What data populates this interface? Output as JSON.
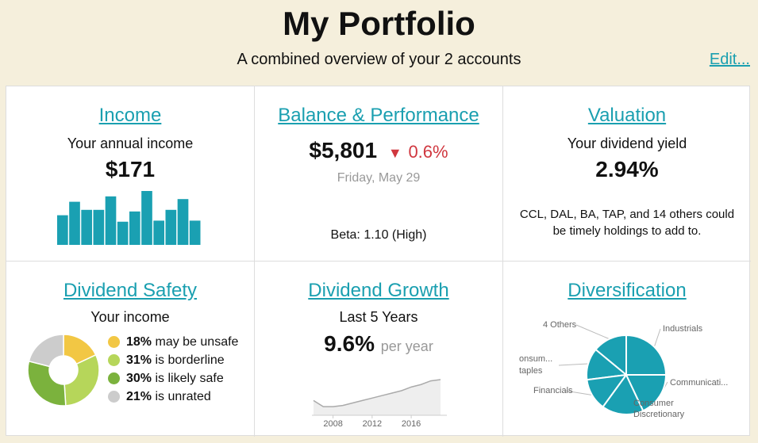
{
  "header": {
    "title": "My Portfolio",
    "subtitle": "A combined overview of your 2 accounts",
    "edit_label": "Edit..."
  },
  "income": {
    "title": "Income",
    "label": "Your annual income",
    "value": "$171",
    "bar_values": [
      0.55,
      0.8,
      0.65,
      0.65,
      0.9,
      0.43,
      0.62,
      1.0,
      0.45,
      0.65,
      0.85,
      0.45
    ],
    "color": "#1aa0b2"
  },
  "balance": {
    "title": "Balance & Performance",
    "value": "$5,801",
    "change_arrow": "▼",
    "change": "0.6%",
    "date": "Friday, May 29",
    "beta": "Beta: 1.10 (High)"
  },
  "valuation": {
    "title": "Valuation",
    "label": "Your dividend yield",
    "value": "2.94%",
    "note_line1": "CCL, DAL, BA, TAP, and 14 others could",
    "note_line2": "be timely holdings to add to."
  },
  "safety": {
    "title": "Dividend Safety",
    "label": "Your income",
    "items": [
      {
        "pct": "18%",
        "text": "may be unsafe",
        "color": "#f2c744"
      },
      {
        "pct": "31%",
        "text": "is borderline",
        "color": "#b6d65a"
      },
      {
        "pct": "30%",
        "text": "is likely safe",
        "color": "#7bb23d"
      },
      {
        "pct": "21%",
        "text": "is unrated",
        "color": "#cccccc"
      }
    ]
  },
  "growth": {
    "title": "Dividend Growth",
    "label": "Last 5 Years",
    "value": "9.6%",
    "per": "per year",
    "x_ticks": [
      "2008",
      "2012",
      "2016"
    ]
  },
  "diversification": {
    "title": "Diversification",
    "labels": {
      "others": "4 Others",
      "industrials": "Industrials",
      "consumer_staples_1": "onsum...",
      "consumer_staples_2": "taples",
      "communications": "Communicati...",
      "financials": "Financials",
      "consumer_disc_1": "Consumer",
      "consumer_disc_2": "Discretionary"
    },
    "color": "#1aa0b2"
  },
  "chart_data": [
    {
      "type": "bar",
      "title": "",
      "categories": [
        "1",
        "2",
        "3",
        "4",
        "5",
        "6",
        "7",
        "8",
        "9",
        "10",
        "11",
        "12"
      ],
      "values": [
        0.55,
        0.8,
        0.65,
        0.65,
        0.9,
        0.43,
        0.62,
        1.0,
        0.45,
        0.65,
        0.85,
        0.45
      ],
      "ylim": [
        0,
        1
      ]
    },
    {
      "type": "pie",
      "categories": [
        "may be unsafe",
        "is borderline",
        "is likely safe",
        "is unrated"
      ],
      "values": [
        18,
        31,
        30,
        21
      ]
    },
    {
      "type": "area",
      "x": [
        2006,
        2007,
        2008,
        2009,
        2010,
        2011,
        2012,
        2013,
        2014,
        2015,
        2016,
        2017,
        2018,
        2019
      ],
      "values": [
        12,
        7,
        7,
        8,
        10,
        12,
        14,
        16,
        18,
        20,
        23,
        25,
        28,
        29
      ],
      "x_ticks": [
        "2008",
        "2012",
        "2016"
      ],
      "grid": false
    },
    {
      "type": "pie",
      "categories": [
        "Industrials",
        "Communicati...",
        "Consumer Discretionary",
        "Financials",
        "Consumer Staples",
        "4 Others"
      ],
      "values": [
        25,
        18,
        17,
        13,
        13,
        14
      ]
    }
  ]
}
